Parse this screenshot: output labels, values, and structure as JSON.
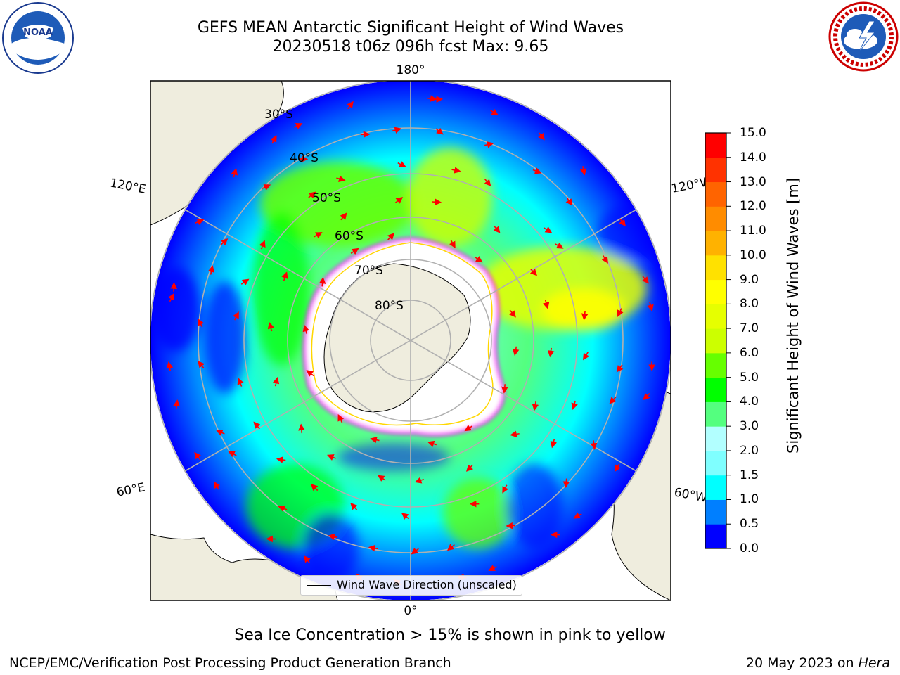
{
  "header": {
    "title_line1": "GEFS MEAN Antarctic Significant Height of Wind Waves",
    "title_line2": "20230518 t06z 096h fcst   Max: 9.65",
    "left_logo": "noaa-logo",
    "right_logo": "national-weather-service-logo"
  },
  "map": {
    "projection": "south-polar-stereographic",
    "meridian_labels": {
      "top": "180°",
      "bottom": "0°",
      "left_upper": "120°E",
      "left_lower": "60°E",
      "right_upper": "120°W",
      "right_lower": "60°W"
    },
    "parallel_labels": [
      "30°S",
      "40°S",
      "50°S",
      "60°S",
      "70°S",
      "80°S"
    ],
    "legend_label": "Wind Wave Direction (unscaled)",
    "arrow_color": "#ff0000",
    "land_color": "#efedde",
    "sea_ice_colors": [
      "#ff00ff",
      "#ffd700"
    ]
  },
  "colorbar": {
    "label": "Significant Height of Wind Waves [m]",
    "ticks": [
      "0.0",
      "0.5",
      "1.0",
      "1.5",
      "2.0",
      "3.0",
      "4.0",
      "5.0",
      "6.0",
      "7.0",
      "8.0",
      "9.0",
      "10.0",
      "11.0",
      "12.0",
      "13.0",
      "14.0",
      "15.0"
    ],
    "colors": [
      "#0000ff",
      "#007fff",
      "#00ffff",
      "#7fffff",
      "#b2ffff",
      "#54ff7f",
      "#00ff00",
      "#66ff00",
      "#ccff00",
      "#e6ff00",
      "#ffff00",
      "#ffe100",
      "#ffb200",
      "#ff8c00",
      "#ff6400",
      "#ff3200",
      "#ff0000"
    ]
  },
  "footer": {
    "note": "Sea Ice Concentration > 15% is shown in pink to yellow",
    "credit_left": "NCEP/EMC/Verification Post Processing Product Generation Branch",
    "credit_date": "20 May 2023 on",
    "credit_host": "Hera"
  }
}
